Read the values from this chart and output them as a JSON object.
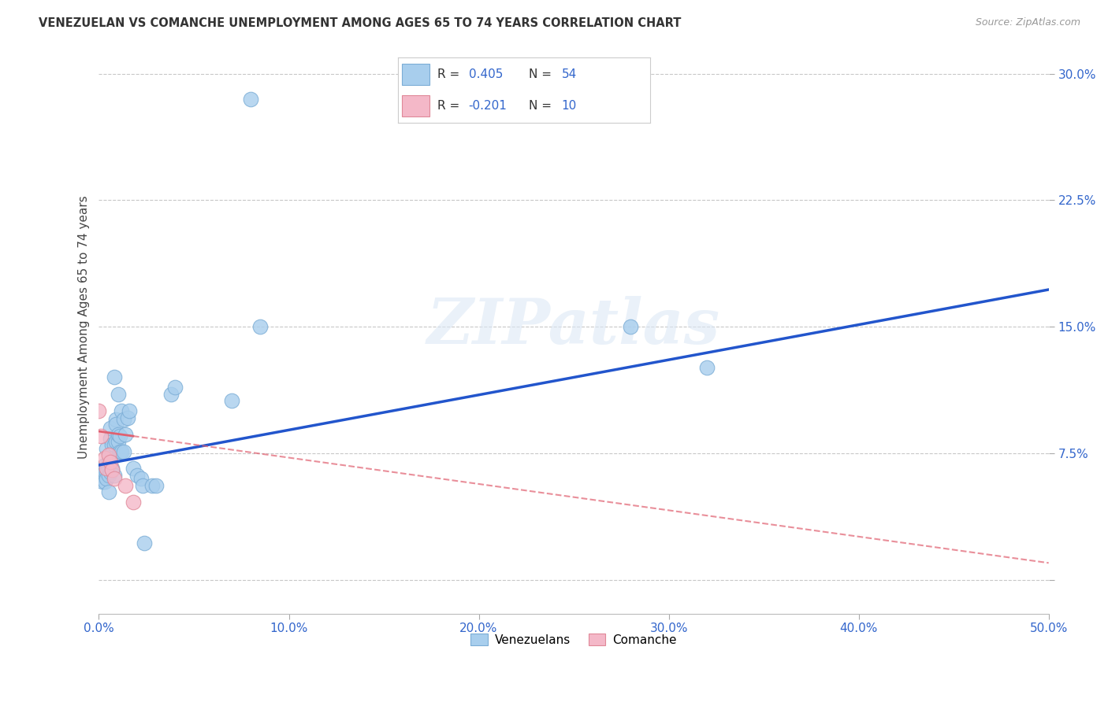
{
  "title": "VENEZUELAN VS COMANCHE UNEMPLOYMENT AMONG AGES 65 TO 74 YEARS CORRELATION CHART",
  "source": "Source: ZipAtlas.com",
  "ylabel": "Unemployment Among Ages 65 to 74 years",
  "xlim": [
    0.0,
    0.5
  ],
  "ylim": [
    -0.02,
    0.32
  ],
  "xticks": [
    0.0,
    0.1,
    0.2,
    0.3,
    0.4,
    0.5
  ],
  "xtick_labels": [
    "0.0%",
    "10.0%",
    "20.0%",
    "30.0%",
    "40.0%",
    "50.0%"
  ],
  "yticks": [
    0.0,
    0.075,
    0.15,
    0.225,
    0.3
  ],
  "ytick_labels": [
    "",
    "7.5%",
    "15.0%",
    "22.5%",
    "30.0%"
  ],
  "background_color": "#ffffff",
  "grid_color": "#c8c8c8",
  "watermark_text": "ZIPatlas",
  "venezuelan_color": "#A8CEED",
  "venezuelan_edge": "#7BADD6",
  "comanche_color": "#F4B8C8",
  "comanche_edge": "#E08898",
  "trend_ven_color": "#2255CC",
  "trend_com_color": "#E06070",
  "legend_box_color": "#ffffff",
  "legend_border_color": "#aaaaaa",
  "venezuelan_points": [
    [
      0.0,
      0.065
    ],
    [
      0.001,
      0.06
    ],
    [
      0.002,
      0.058
    ],
    [
      0.002,
      0.062
    ],
    [
      0.003,
      0.068
    ],
    [
      0.003,
      0.064
    ],
    [
      0.003,
      0.058
    ],
    [
      0.004,
      0.078
    ],
    [
      0.004,
      0.064
    ],
    [
      0.004,
      0.06
    ],
    [
      0.005,
      0.062
    ],
    [
      0.005,
      0.052
    ],
    [
      0.005,
      0.066
    ],
    [
      0.005,
      0.07
    ],
    [
      0.006,
      0.074
    ],
    [
      0.006,
      0.064
    ],
    [
      0.006,
      0.084
    ],
    [
      0.006,
      0.09
    ],
    [
      0.007,
      0.08
    ],
    [
      0.007,
      0.065
    ],
    [
      0.007,
      0.075
    ],
    [
      0.007,
      0.066
    ],
    [
      0.008,
      0.062
    ],
    [
      0.008,
      0.12
    ],
    [
      0.008,
      0.08
    ],
    [
      0.009,
      0.095
    ],
    [
      0.009,
      0.092
    ],
    [
      0.009,
      0.082
    ],
    [
      0.01,
      0.082
    ],
    [
      0.01,
      0.086
    ],
    [
      0.01,
      0.11
    ],
    [
      0.011,
      0.076
    ],
    [
      0.011,
      0.085
    ],
    [
      0.012,
      0.076
    ],
    [
      0.012,
      0.1
    ],
    [
      0.013,
      0.076
    ],
    [
      0.013,
      0.095
    ],
    [
      0.014,
      0.086
    ],
    [
      0.015,
      0.096
    ],
    [
      0.016,
      0.1
    ],
    [
      0.018,
      0.066
    ],
    [
      0.02,
      0.062
    ],
    [
      0.022,
      0.06
    ],
    [
      0.023,
      0.056
    ],
    [
      0.024,
      0.022
    ],
    [
      0.028,
      0.056
    ],
    [
      0.03,
      0.056
    ],
    [
      0.038,
      0.11
    ],
    [
      0.04,
      0.114
    ],
    [
      0.07,
      0.106
    ],
    [
      0.08,
      0.285
    ],
    [
      0.28,
      0.15
    ],
    [
      0.32,
      0.126
    ],
    [
      0.085,
      0.15
    ]
  ],
  "comanche_points": [
    [
      0.0,
      0.1
    ],
    [
      0.001,
      0.085
    ],
    [
      0.003,
      0.072
    ],
    [
      0.004,
      0.066
    ],
    [
      0.005,
      0.074
    ],
    [
      0.006,
      0.07
    ],
    [
      0.007,
      0.065
    ],
    [
      0.008,
      0.06
    ],
    [
      0.014,
      0.056
    ],
    [
      0.018,
      0.046
    ]
  ],
  "ven_trend_x": [
    0.0,
    0.5
  ],
  "ven_trend_y": [
    0.068,
    0.172
  ],
  "com_trend_x": [
    0.0,
    0.5
  ],
  "com_trend_y": [
    0.088,
    0.01
  ]
}
